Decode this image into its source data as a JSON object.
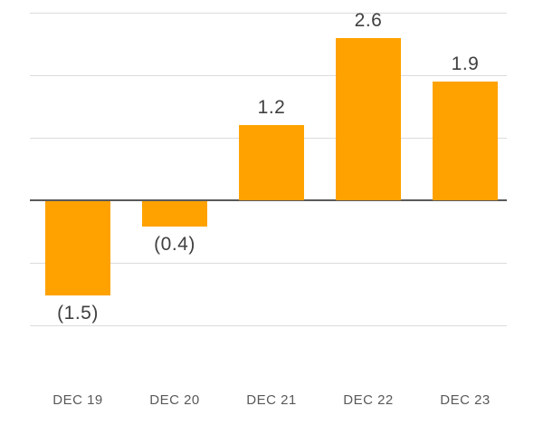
{
  "chart_data": {
    "type": "bar",
    "title": "",
    "xlabel": "",
    "ylabel": "",
    "categories": [
      "DEC 19",
      "DEC 20",
      "DEC 21",
      "DEC 22",
      "DEC 23"
    ],
    "values": [
      -1.5,
      -0.4,
      1.2,
      2.6,
      1.9
    ],
    "data_labels": [
      "(1.5)",
      "(0.4)",
      "1.2",
      "2.6",
      "1.9"
    ],
    "ylim": [
      -2.6,
      3.2
    ],
    "gridline_values": [
      3,
      2,
      1,
      -1,
      -2
    ],
    "zero_line_value": 0,
    "grid": true,
    "legend_position": "none",
    "colors": {
      "bar": "#FFA200",
      "value_label": "#404040",
      "category_label": "#595959",
      "gridline": "#DCDCDC",
      "zero_axis": "#5A5A5A",
      "background": "#FFFFFF"
    }
  }
}
